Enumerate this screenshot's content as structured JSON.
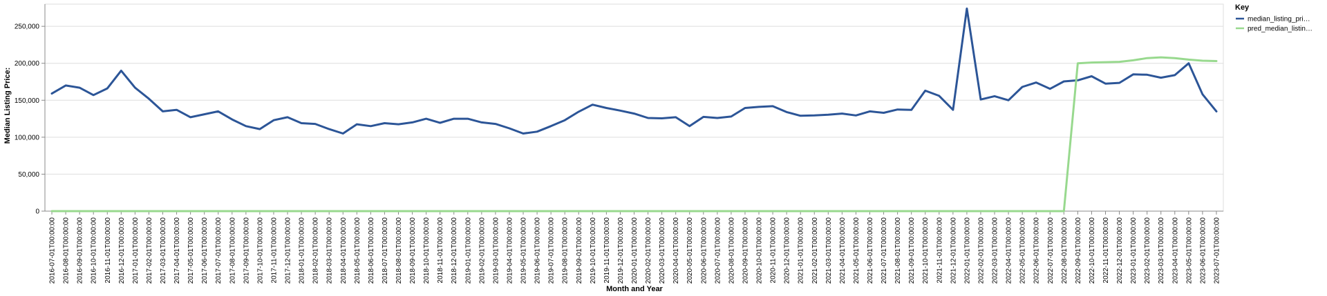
{
  "chart_data": {
    "type": "line",
    "xlabel": "Month and Year",
    "ylabel": "Median Listing Price:",
    "ylim": [
      0,
      280000
    ],
    "yticks": [
      0,
      50000,
      100000,
      150000,
      200000,
      250000
    ],
    "ytick_labels": [
      "0",
      "50,000",
      "100,000",
      "150,000",
      "200,000",
      "250,000"
    ],
    "grid": true,
    "legend": {
      "title": "Key",
      "placement": "top-right",
      "entries": [
        "median_listing_pri…",
        "pred_median_listin…"
      ]
    },
    "x": [
      "2016-07-01T00:00:00",
      "2016-08-01T00:00:00",
      "2016-09-01T00:00:00",
      "2016-10-01T00:00:00",
      "2016-11-01T00:00:00",
      "2016-12-01T00:00:00",
      "2017-01-01T00:00:00",
      "2017-02-01T00:00:00",
      "2017-03-01T00:00:00",
      "2017-04-01T00:00:00",
      "2017-05-01T00:00:00",
      "2017-06-01T00:00:00",
      "2017-07-01T00:00:00",
      "2017-08-01T00:00:00",
      "2017-09-01T00:00:00",
      "2017-10-01T00:00:00",
      "2017-11-01T00:00:00",
      "2017-12-01T00:00:00",
      "2018-01-01T00:00:00",
      "2018-02-01T00:00:00",
      "2018-03-01T00:00:00",
      "2018-04-01T00:00:00",
      "2018-05-01T00:00:00",
      "2018-06-01T00:00:00",
      "2018-07-01T00:00:00",
      "2018-08-01T00:00:00",
      "2018-09-01T00:00:00",
      "2018-10-01T00:00:00",
      "2018-11-01T00:00:00",
      "2018-12-01T00:00:00",
      "2019-01-01T00:00:00",
      "2019-02-01T00:00:00",
      "2019-03-01T00:00:00",
      "2019-04-01T00:00:00",
      "2019-05-01T00:00:00",
      "2019-06-01T00:00:00",
      "2019-07-01T00:00:00",
      "2019-08-01T00:00:00",
      "2019-09-01T00:00:00",
      "2019-10-01T00:00:00",
      "2019-11-01T00:00:00",
      "2019-12-01T00:00:00",
      "2020-01-01T00:00:00",
      "2020-02-01T00:00:00",
      "2020-03-01T00:00:00",
      "2020-04-01T00:00:00",
      "2020-05-01T00:00:00",
      "2020-06-01T00:00:00",
      "2020-07-01T00:00:00",
      "2020-08-01T00:00:00",
      "2020-09-01T00:00:00",
      "2020-10-01T00:00:00",
      "2020-11-01T00:00:00",
      "2020-12-01T00:00:00",
      "2021-01-01T00:00:00",
      "2021-02-01T00:00:00",
      "2021-03-01T00:00:00",
      "2021-04-01T00:00:00",
      "2021-05-01T00:00:00",
      "2021-06-01T00:00:00",
      "2021-07-01T00:00:00",
      "2021-08-01T00:00:00",
      "2021-09-01T00:00:00",
      "2021-10-01T00:00:00",
      "2021-11-01T00:00:00",
      "2021-12-01T00:00:00",
      "2022-01-01T00:00:00",
      "2022-02-01T00:00:00",
      "2022-03-01T00:00:00",
      "2022-04-01T00:00:00",
      "2022-05-01T00:00:00",
      "2022-06-01T00:00:00",
      "2022-07-01T00:00:00",
      "2022-08-01T00:00:00",
      "2022-09-01T00:00:00",
      "2022-10-01T00:00:00",
      "2022-11-01T00:00:00",
      "2022-12-01T00:00:00",
      "2023-01-01T00:00:00",
      "2023-02-01T00:00:00",
      "2023-03-01T00:00:00",
      "2023-04-01T00:00:00",
      "2023-05-01T00:00:00",
      "2023-06-01T00:00:00",
      "2023-07-01T00:00:00"
    ],
    "series": [
      {
        "name": "median_listing_pri…",
        "color": "#2c5597",
        "values": [
          159000,
          170000,
          167000,
          157000,
          166000,
          190000,
          167000,
          152000,
          135000,
          137000,
          127000,
          131000,
          135000,
          124000,
          115000,
          111000,
          123000,
          127000,
          119000,
          118000,
          111000,
          105000,
          117500,
          115000,
          119000,
          117500,
          120000,
          125000,
          119500,
          125000,
          125000,
          120000,
          118000,
          112000,
          105000,
          107500,
          115000,
          123000,
          134500,
          144000,
          139500,
          136000,
          132000,
          126000,
          125500,
          127000,
          115000,
          127500,
          126000,
          128000,
          139500,
          141000,
          142000,
          134000,
          129000,
          129500,
          130500,
          132000,
          129500,
          135000,
          133000,
          137500,
          137000,
          163000,
          156000,
          137000,
          274000,
          151000,
          155500,
          150000,
          168000,
          174000,
          165500,
          175500,
          177000,
          182500,
          172500,
          173500,
          185000,
          184500,
          180500,
          184000,
          200000,
          158000,
          135000
        ]
      },
      {
        "name": "pred_median_listin…",
        "color": "#98d98e",
        "values": [
          0,
          0,
          0,
          0,
          0,
          0,
          0,
          0,
          0,
          0,
          0,
          0,
          0,
          0,
          0,
          0,
          0,
          0,
          0,
          0,
          0,
          0,
          0,
          0,
          0,
          0,
          0,
          0,
          0,
          0,
          0,
          0,
          0,
          0,
          0,
          0,
          0,
          0,
          0,
          0,
          0,
          0,
          0,
          0,
          0,
          0,
          0,
          0,
          0,
          0,
          0,
          0,
          0,
          0,
          0,
          0,
          0,
          0,
          0,
          0,
          0,
          0,
          0,
          0,
          0,
          0,
          0,
          0,
          0,
          0,
          0,
          0,
          0,
          0,
          200000,
          201000,
          201500,
          202000,
          204000,
          207000,
          208000,
          207000,
          205000,
          203500,
          203000
        ]
      }
    ]
  }
}
